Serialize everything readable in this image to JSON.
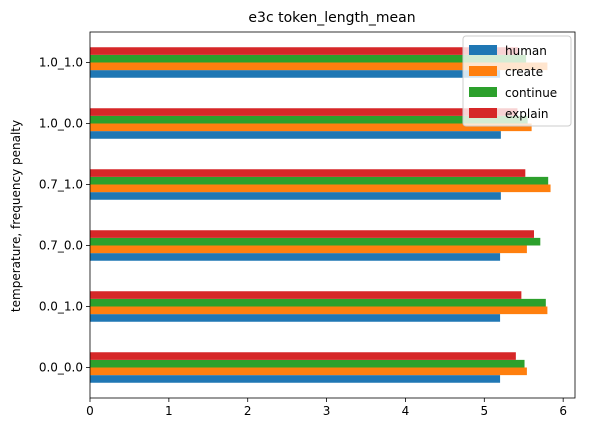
{
  "chart_data": {
    "type": "bar",
    "orientation": "horizontal",
    "title": "e3c token_length_mean",
    "ylabel": "temperature, frequency penalty",
    "xlabel": "",
    "categories": [
      "0.0_0.0",
      "0.0_1.0",
      "0.7_0.0",
      "0.7_1.0",
      "1.0_0.0",
      "1.0_1.0"
    ],
    "xlim": [
      0,
      6.15
    ],
    "xticks": [
      "0",
      "1",
      "2",
      "3",
      "4",
      "5",
      "6"
    ],
    "grid": false,
    "legend_position": "top-right",
    "series": [
      {
        "name": "human",
        "color": "#1f77b4",
        "values": [
          5.2,
          5.2,
          5.2,
          5.21,
          5.21,
          5.2
        ]
      },
      {
        "name": "create",
        "color": "#ff7f0e",
        "values": [
          5.54,
          5.8,
          5.54,
          5.84,
          5.6,
          5.8
        ]
      },
      {
        "name": "continue",
        "color": "#2ca02c",
        "values": [
          5.51,
          5.78,
          5.71,
          5.81,
          5.55,
          5.53
        ]
      },
      {
        "name": "explain",
        "color": "#d62728",
        "values": [
          5.4,
          5.47,
          5.63,
          5.52,
          5.42,
          5.43
        ]
      }
    ]
  }
}
